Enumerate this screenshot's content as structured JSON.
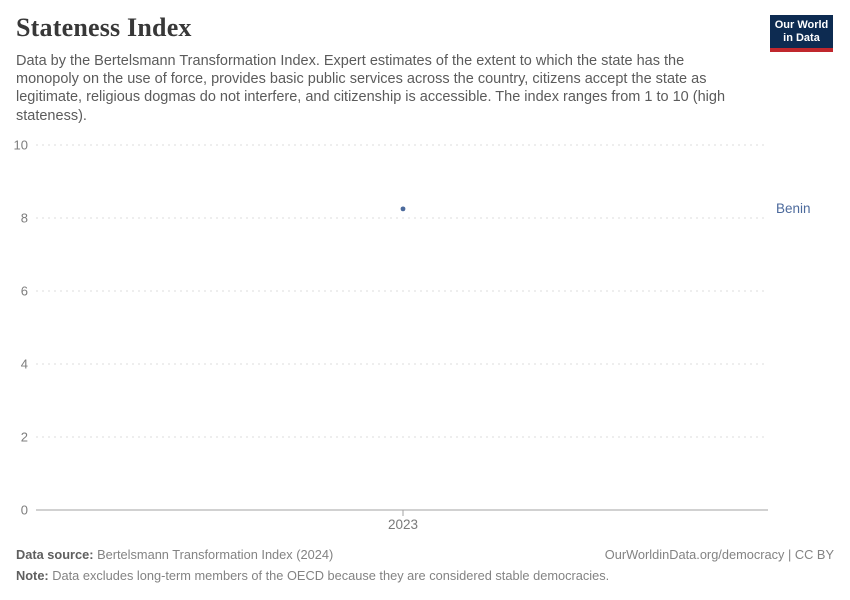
{
  "header": {
    "title": "Stateness Index",
    "subtitle": "Data by the Bertelsmann Transformation Index. Expert estimates of the extent to which the state has the monopoly on the use of force, provides basic public services across the country, citizens accept the state as legitimate, religious dogmas do not interfere, and citizenship is accessible. The index ranges from 1 to 10 (high stateness)."
  },
  "logo": {
    "line1": "Our World",
    "line2": "in Data",
    "bg_color": "#0d2b51",
    "bar_color": "#c0272d"
  },
  "chart_data": {
    "type": "scatter",
    "title": "Stateness Index",
    "x": [
      2023
    ],
    "x_tick_labels": [
      "2023"
    ],
    "series": [
      {
        "name": "Benin",
        "values": [
          8.25
        ],
        "color": "#4c6a9c"
      }
    ],
    "y_ticks": [
      0,
      2,
      4,
      6,
      8,
      10
    ],
    "ylim": [
      0,
      10
    ],
    "xlabel": "",
    "ylabel": "",
    "grid": "horizontal-dashed",
    "legend_position": "right-of-point",
    "colors": {
      "grid": "#dddddd",
      "axis": "#a3a3a3",
      "tick_label": "#7d7d7d"
    }
  },
  "footer": {
    "source_label": "Data source:",
    "source_text": " Bertelsmann Transformation Index (2024)",
    "origin_text": "OurWorldinData.org/democracy | CC BY",
    "note_label": "Note:",
    "note_text": " Data excludes long-term members of the OECD because they are considered stable democracies."
  }
}
